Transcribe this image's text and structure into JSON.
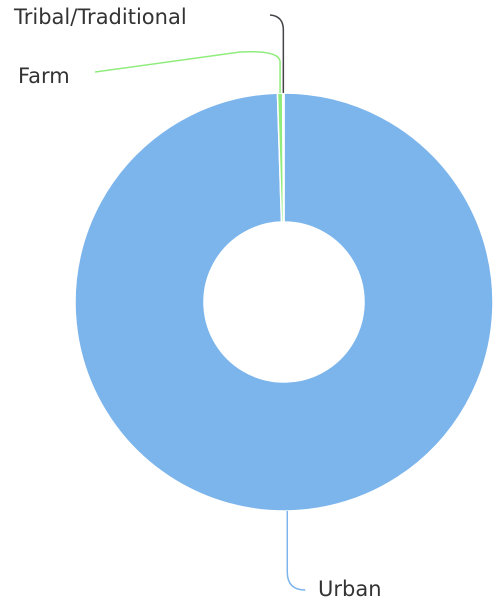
{
  "chart_data": {
    "type": "donut",
    "categories": [
      "Urban",
      "Farm",
      "Tribal/Traditional"
    ],
    "values": [
      99.5,
      0.4,
      0.1
    ],
    "colors": [
      "#7cb5ec",
      "#90ed7d",
      "#434348"
    ]
  }
}
